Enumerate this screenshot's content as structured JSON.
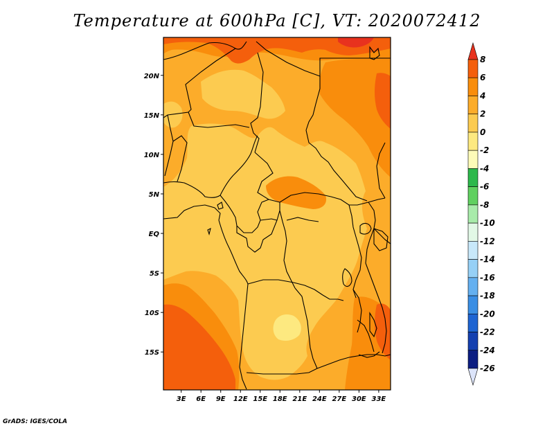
{
  "title": "Temperature at 600hPa [C], VT: 2020072412",
  "credit": "GrADS: IGES/COLA",
  "map": {
    "lat_labels": [
      "20N",
      "15N",
      "10N",
      "5N",
      "EQ",
      "5S",
      "10S",
      "15S"
    ],
    "lon_labels": [
      "3E",
      "6E",
      "9E",
      "12E",
      "15E",
      "18E",
      "21E",
      "24E",
      "27E",
      "30E",
      "33E"
    ],
    "lat_values": [
      20,
      15,
      10,
      5,
      0,
      -5,
      -10,
      -15
    ],
    "lon_values": [
      3,
      6,
      9,
      12,
      15,
      18,
      21,
      24,
      27,
      30,
      33
    ],
    "lat_range": [
      -19.8,
      24.8
    ],
    "lon_range": [
      0.3,
      34.8
    ]
  },
  "colorbar": {
    "labels": [
      "8",
      "6",
      "4",
      "2",
      "0",
      "-2",
      "-4",
      "-6",
      "-8",
      "-10",
      "-12",
      "-14",
      "-16",
      "-18",
      "-20",
      "-22",
      "-24",
      "-26"
    ],
    "colors": [
      "#e8321e",
      "#f45f0c",
      "#f98d0c",
      "#fcac2a",
      "#fccb50",
      "#fde980",
      "#fdfbb8",
      "#2db84c",
      "#60d060",
      "#a8ebaa",
      "#e2f8e6",
      "#c8e8fa",
      "#96d0f6",
      "#64b0f0",
      "#3a8ee4",
      "#1e64d2",
      "#1440b0",
      "#0c1e82",
      "#0a0a5c",
      "#dce4fa"
    ]
  }
}
